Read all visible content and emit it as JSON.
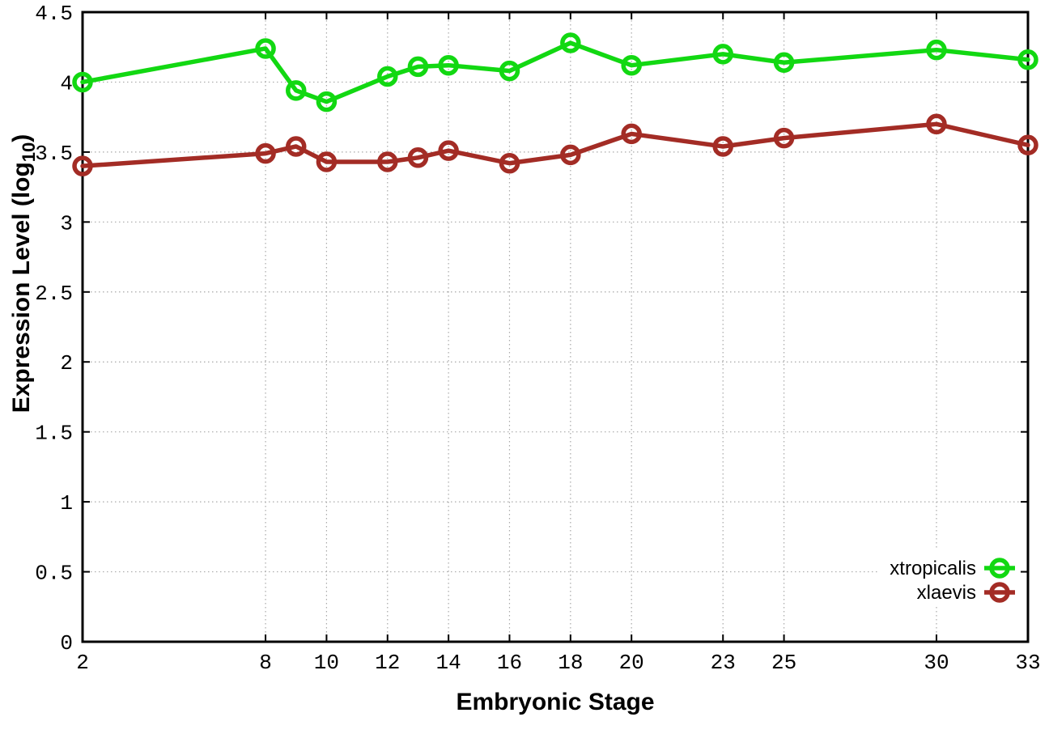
{
  "figure": {
    "background": "#ffffff",
    "x_axis_title": "Embryonic Stage",
    "y_axis_title_prefix": "Expression Level (log",
    "y_axis_title_sub": "10",
    "y_axis_title_suffix": ")"
  },
  "chart_data": {
    "type": "line",
    "title": "",
    "xlabel": "Embryonic Stage",
    "ylabel": "Expression Level (log10)",
    "x": [
      2,
      8,
      9,
      10,
      12,
      13,
      14,
      16,
      18,
      20,
      23,
      25,
      30,
      33
    ],
    "series": [
      {
        "name": "xtropicalis",
        "color": "#12d812",
        "values": [
          4.0,
          4.24,
          3.94,
          3.86,
          4.04,
          4.11,
          4.12,
          4.08,
          4.28,
          4.12,
          4.2,
          4.14,
          4.23,
          4.16
        ]
      },
      {
        "name": "xlaevis",
        "color": "#a32c25",
        "values": [
          3.4,
          3.49,
          3.54,
          3.43,
          3.43,
          3.46,
          3.51,
          3.42,
          3.48,
          3.63,
          3.54,
          3.6,
          3.7,
          3.55
        ]
      }
    ],
    "xticks": [
      2,
      8,
      10,
      12,
      14,
      16,
      18,
      20,
      23,
      25,
      30,
      33
    ],
    "yticks": [
      0,
      0.5,
      1,
      1.5,
      2,
      2.5,
      3,
      3.5,
      4,
      4.5
    ],
    "xlim": [
      2,
      33
    ],
    "ylim": [
      0,
      4.5
    ],
    "grid": true,
    "marker": "open-circle",
    "legend_position": "bottom-right",
    "colors": {
      "grid": "#a8a8a8",
      "axis": "#000000",
      "legend_background": "#ffffff"
    }
  }
}
